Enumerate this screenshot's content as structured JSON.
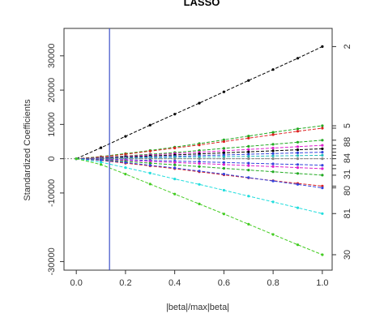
{
  "chart_data": {
    "type": "line",
    "title": "LASSO",
    "xlabel": "|beta|/max|beta|",
    "ylabel": "Standardized Coefficients",
    "xlim": [
      -0.05,
      1.04
    ],
    "ylim": [
      -32500,
      38000
    ],
    "xticks": [
      "0.0",
      "0.2",
      "0.4",
      "0.6",
      "0.8",
      "1.0"
    ],
    "yticks": [
      "-30000",
      "-10000",
      "0",
      "10000",
      "20000",
      "30000"
    ],
    "vline": {
      "x": 0.135,
      "color": "#3b4fc8"
    },
    "right_labels": [
      "2",
      "5",
      "88",
      "84",
      "31",
      "80",
      "81",
      "30"
    ],
    "series": [
      {
        "label": "2",
        "color": "#000000",
        "x": [
          0.0,
          0.1,
          0.2,
          0.3,
          0.4,
          0.5,
          0.6,
          0.7,
          0.8,
          0.9,
          1.0
        ],
        "y": [
          0,
          3200,
          6500,
          9800,
          13000,
          16200,
          19500,
          22800,
          26000,
          29300,
          32700
        ]
      },
      {
        "label": "5",
        "color": "#22aa22",
        "x": [
          0.0,
          0.1,
          0.2,
          0.3,
          0.4,
          0.5,
          0.6,
          0.7,
          0.8,
          0.9,
          1.0
        ],
        "y": [
          0,
          600,
          1500,
          2400,
          3400,
          4400,
          5500,
          6600,
          7700,
          8700,
          9600
        ]
      },
      {
        "label": "",
        "color": "#dd2222",
        "x": [
          0.0,
          0.1,
          0.2,
          0.3,
          0.4,
          0.5,
          0.6,
          0.7,
          0.8,
          0.9,
          1.0
        ],
        "y": [
          0,
          500,
          1300,
          2200,
          3100,
          4000,
          5000,
          6000,
          7000,
          8000,
          8900
        ]
      },
      {
        "label": "88",
        "color": "#22aa22",
        "x": [
          0.0,
          0.1,
          0.2,
          0.3,
          0.4,
          0.5,
          0.6,
          0.7,
          0.8,
          0.9,
          1.0
        ],
        "y": [
          0,
          300,
          800,
          1300,
          1800,
          2400,
          3000,
          3600,
          4200,
          4800,
          5400
        ]
      },
      {
        "label": "",
        "color": "#dd22cc",
        "x": [
          0.0,
          0.1,
          0.2,
          0.3,
          0.4,
          0.5,
          0.6,
          0.7,
          0.8,
          0.9,
          1.0
        ],
        "y": [
          0,
          300,
          700,
          1100,
          1500,
          1900,
          2300,
          2700,
          3100,
          3500,
          3900
        ]
      },
      {
        "label": "84",
        "color": "#000000",
        "x": [
          0.0,
          0.1,
          0.2,
          0.3,
          0.4,
          0.5,
          0.6,
          0.7,
          0.8,
          0.9,
          1.0
        ],
        "y": [
          0,
          200,
          500,
          800,
          1100,
          1400,
          1700,
          2000,
          2300,
          2600,
          2900
        ]
      },
      {
        "label": "",
        "color": "#3344dd",
        "x": [
          0.0,
          0.1,
          0.2,
          0.3,
          0.4,
          0.5,
          0.6,
          0.7,
          0.8,
          0.9,
          1.0
        ],
        "y": [
          0,
          100,
          300,
          500,
          700,
          900,
          1100,
          1300,
          1500,
          1700,
          1900
        ]
      },
      {
        "label": "",
        "color": "#22bbbb",
        "x": [
          0.0,
          0.1,
          0.2,
          0.3,
          0.4,
          0.5,
          0.6,
          0.7,
          0.8,
          0.9,
          1.0
        ],
        "y": [
          0,
          100,
          200,
          300,
          400,
          500,
          600,
          700,
          800,
          900,
          1000
        ]
      },
      {
        "label": "",
        "color": "#888888",
        "x": [
          0.0,
          0.1,
          0.2,
          0.3,
          0.4,
          0.5,
          0.6,
          0.7,
          0.8,
          0.9,
          1.0
        ],
        "y": [
          0,
          0,
          0,
          0,
          0,
          0,
          0,
          0,
          0,
          0,
          0
        ]
      },
      {
        "label": "31",
        "color": "#3344dd",
        "x": [
          0.0,
          0.1,
          0.2,
          0.3,
          0.4,
          0.5,
          0.6,
          0.7,
          0.8,
          0.9,
          1.0
        ],
        "y": [
          0,
          -100,
          -300,
          -500,
          -700,
          -900,
          -1100,
          -1300,
          -1500,
          -1700,
          -1900
        ]
      },
      {
        "label": "",
        "color": "#dd22cc",
        "x": [
          0.0,
          0.1,
          0.2,
          0.3,
          0.4,
          0.5,
          0.6,
          0.7,
          0.8,
          0.9,
          1.0
        ],
        "y": [
          0,
          -200,
          -500,
          -800,
          -1100,
          -1400,
          -1700,
          -2000,
          -2300,
          -2600,
          -2900
        ]
      },
      {
        "label": "",
        "color": "#22aa22",
        "x": [
          0.0,
          0.1,
          0.2,
          0.3,
          0.4,
          0.5,
          0.6,
          0.7,
          0.8,
          0.9,
          1.0
        ],
        "y": [
          0,
          -300,
          -800,
          -1300,
          -1800,
          -2300,
          -2800,
          -3300,
          -3800,
          -4300,
          -4800
        ]
      },
      {
        "label": "80",
        "color": "#dd2222",
        "x": [
          0.0,
          0.1,
          0.2,
          0.3,
          0.4,
          0.5,
          0.6,
          0.7,
          0.8,
          0.9,
          1.0
        ],
        "y": [
          0,
          -500,
          -1300,
          -2100,
          -2900,
          -3800,
          -4700,
          -5600,
          -6400,
          -7200,
          -8000
        ]
      },
      {
        "label": "",
        "color": "#3344dd",
        "x": [
          0.0,
          0.1,
          0.2,
          0.3,
          0.4,
          0.5,
          0.6,
          0.7,
          0.8,
          0.9,
          1.0
        ],
        "y": [
          0,
          -400,
          -1100,
          -1900,
          -2700,
          -3600,
          -4500,
          -5500,
          -6500,
          -7500,
          -8500
        ]
      },
      {
        "label": "81",
        "color": "#22dddd",
        "x": [
          0.0,
          0.1,
          0.2,
          0.3,
          0.4,
          0.5,
          0.6,
          0.7,
          0.8,
          0.9,
          1.0
        ],
        "y": [
          0,
          -1000,
          -2600,
          -4200,
          -5900,
          -7500,
          -9200,
          -10900,
          -12600,
          -14300,
          -16000
        ]
      },
      {
        "label": "30",
        "color": "#44cc22",
        "x": [
          0.0,
          0.1,
          0.2,
          0.3,
          0.4,
          0.5,
          0.6,
          0.7,
          0.8,
          0.9,
          1.0
        ],
        "y": [
          0,
          -1700,
          -4500,
          -7400,
          -10300,
          -13200,
          -16100,
          -19100,
          -22100,
          -25100,
          -28000
        ]
      }
    ]
  }
}
